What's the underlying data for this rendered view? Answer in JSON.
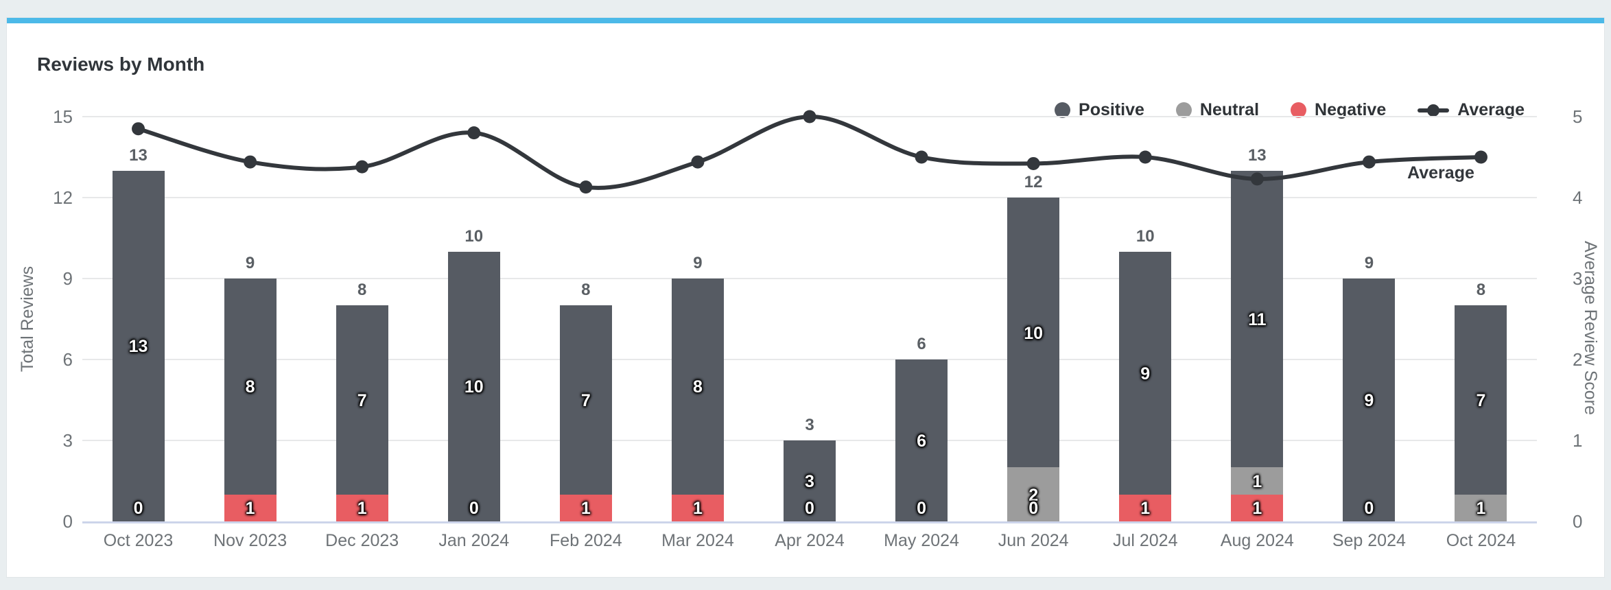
{
  "page": {
    "title": "Reviews by Month",
    "accent_bar_color": "#4cb9e8",
    "card_background": "#ffffff",
    "page_background": "#e9eef0"
  },
  "chart_data": {
    "type": "bar",
    "subtype": "stacked bars with overlaid smooth line on secondary axis",
    "title": "Reviews by Month",
    "categories": [
      "Oct 2023",
      "Nov 2023",
      "Dec 2023",
      "Jan 2024",
      "Feb 2024",
      "Mar 2024",
      "Apr 2024",
      "May 2024",
      "Jun 2024",
      "Jul 2024",
      "Aug 2024",
      "Sep 2024",
      "Oct 2024"
    ],
    "series": [
      {
        "name": "Positive",
        "type": "bar",
        "color": "#565b63",
        "values": [
          13,
          8,
          7,
          10,
          7,
          8,
          3,
          6,
          10,
          9,
          11,
          9,
          7
        ]
      },
      {
        "name": "Neutral",
        "type": "bar",
        "color": "#9c9c9c",
        "values": [
          0,
          0,
          0,
          0,
          0,
          0,
          0,
          0,
          2,
          0,
          1,
          0,
          1
        ]
      },
      {
        "name": "Negative",
        "type": "bar",
        "color": "#e85d62",
        "values": [
          0,
          1,
          1,
          0,
          1,
          1,
          0,
          0,
          0,
          1,
          1,
          0,
          0
        ]
      },
      {
        "name": "Average",
        "type": "line",
        "axis": "right",
        "color": "#33373c",
        "values": [
          4.85,
          4.44,
          4.38,
          4.8,
          4.13,
          4.44,
          5.0,
          4.5,
          4.42,
          4.5,
          4.23,
          4.44,
          4.5
        ]
      }
    ],
    "bar_totals": [
      13,
      9,
      8,
      10,
      8,
      9,
      3,
      6,
      12,
      10,
      13,
      9,
      8
    ],
    "negative_zero_label_shown": [
      true,
      true,
      true,
      true,
      true,
      true,
      true,
      true,
      true,
      true,
      true,
      true,
      false
    ],
    "left_axis": {
      "label": "Total Reviews",
      "ticks": [
        0,
        3,
        6,
        9,
        12,
        15
      ],
      "range": [
        0,
        15
      ]
    },
    "right_axis": {
      "label": "Average Review Score",
      "ticks": [
        0,
        1,
        2,
        3,
        4,
        5
      ],
      "range": [
        0,
        5
      ]
    },
    "line_label": "Average",
    "legend": {
      "position": "top-right",
      "items": [
        "Positive",
        "Neutral",
        "Negative",
        "Average"
      ]
    },
    "grid": true,
    "colors": {
      "gridline": "#e7e8e9",
      "axis_baseline": "#ccd4ea",
      "tick_text": "#6e7377",
      "total_label_text": "#5a5f64",
      "segment_label_text": "#ffffff",
      "title_text": "#30353a"
    }
  }
}
